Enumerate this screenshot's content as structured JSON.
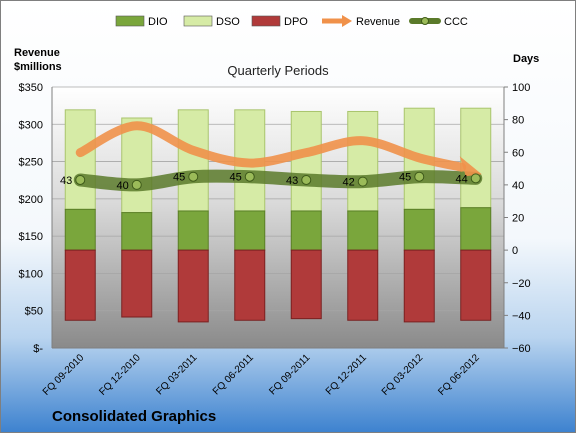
{
  "chart_data": {
    "type": "bar",
    "title": "Quarterly Periods",
    "company": "Consolidated Graphics",
    "left_axis_label_line1": "Revenue",
    "left_axis_label_line2": "$millions",
    "right_axis_label": "Days",
    "categories": [
      "FQ 09-2010",
      "FQ 12-2010",
      "FQ 03-2011",
      "FQ 06-2011",
      "FQ 09-2011",
      "FQ 12-2011",
      "FQ 03-2012",
      "FQ 06-2012"
    ],
    "left_ylim": [
      0,
      350
    ],
    "left_ticks": [
      {
        "value": 0,
        "label": "$-"
      },
      {
        "value": 50,
        "label": "$50"
      },
      {
        "value": 100,
        "label": "$100"
      },
      {
        "value": 150,
        "label": "$150"
      },
      {
        "value": 200,
        "label": "$200"
      },
      {
        "value": 250,
        "label": "$250"
      },
      {
        "value": 300,
        "label": "$300"
      },
      {
        "value": 350,
        "label": "$350"
      }
    ],
    "right_ylim": [
      -60,
      100
    ],
    "right_ticks": [
      -60,
      -40,
      -20,
      0,
      20,
      40,
      60,
      80,
      100
    ],
    "series": [
      {
        "name": "DIO",
        "axis": "right",
        "color": "#7aa63c",
        "values": [
          25,
          23,
          24,
          24,
          24,
          24,
          25,
          26
        ]
      },
      {
        "name": "DSO",
        "axis": "right",
        "color": "#d6eba6",
        "values": [
          61,
          58,
          62,
          62,
          61,
          61,
          62,
          61
        ]
      },
      {
        "name": "DPO",
        "axis": "right",
        "color": "#b03a3a",
        "values": [
          43,
          41,
          44,
          43,
          42,
          43,
          44,
          43
        ]
      },
      {
        "name": "Revenue",
        "axis": "left",
        "color": "#f0914a",
        "values": [
          262,
          298,
          265,
          248,
          262,
          278,
          255,
          233
        ]
      },
      {
        "name": "CCC",
        "axis": "right",
        "color": "#5a7a2a",
        "values": [
          43,
          40,
          45,
          45,
          43,
          42,
          45,
          44
        ]
      }
    ],
    "ccc_labels": [
      "43",
      "40",
      "45",
      "45",
      "43",
      "42",
      "45",
      "44"
    ],
    "legend_position": "top",
    "grid": true
  }
}
